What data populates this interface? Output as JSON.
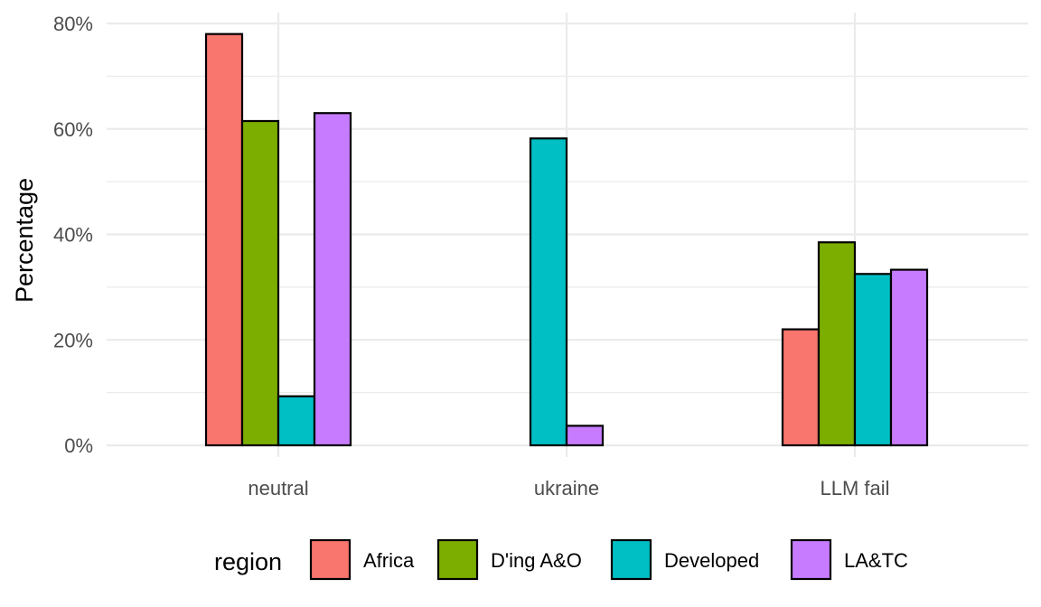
{
  "chart_data": {
    "type": "bar",
    "categories": [
      "neutral",
      "ukraine",
      "LLM fail"
    ],
    "series": [
      {
        "name": "Africa",
        "color": "#F8766D",
        "values": [
          78,
          0,
          22
        ]
      },
      {
        "name": "D'ing A&O",
        "color": "#7CAE00",
        "values": [
          61.5,
          0,
          38.5
        ]
      },
      {
        "name": "Developed",
        "color": "#00BFC4",
        "values": [
          9.3,
          58.2,
          32.5
        ]
      },
      {
        "name": "LA&TC",
        "color": "#C77CFF",
        "values": [
          63,
          3.7,
          33.3
        ]
      }
    ],
    "title": "",
    "xlabel": "",
    "ylabel": "Percentage",
    "ylim": [
      0,
      80
    ],
    "yticks": [
      "0%",
      "20%",
      "40%",
      "60%",
      "80%"
    ],
    "grid": true,
    "legend_title": "region",
    "legend_position": "bottom"
  }
}
